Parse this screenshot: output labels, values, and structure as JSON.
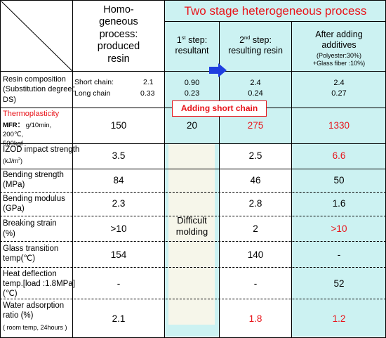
{
  "header": {
    "col1": "Homo-\ngeneous\nprocess:\nproduced\nresin",
    "group": "Two stage heterogeneous process",
    "step1_pre": "1",
    "step1_sup": "st",
    "step1_post": " step:\nresultant",
    "step2_pre": "2",
    "step2_sup": "nd",
    "step2_post": " step:\nresulting resin",
    "after": "After adding\nadditives",
    "after_note": "(Polyester:30%)\n+Glass fiber :10%)"
  },
  "callout": "Adding short chain",
  "difficult": "Difficult\nmolding",
  "rows": {
    "resin": {
      "label": "Resin composition\n(Substitution degree：\nDS)",
      "homo_short_label": "Short chain:",
      "homo_short_val": "2.1",
      "homo_long_label": "Long chain",
      "homo_long_val": "0.33",
      "s1": "0.90\n0.23",
      "s2": "2.4\n0.24",
      "after": "2.4\n0.27"
    },
    "thermo": {
      "label": "Thermoplasticity",
      "mfr_bold": "MFR：",
      "mfr_rest": "g/10min, 200℃,\n500kgf",
      "homo": "150",
      "s1": "20",
      "s2": "275",
      "after": "1330"
    },
    "izod": {
      "label": "IZOD impact strength",
      "unit_pre": "(kJ/m",
      "unit_sup": "2",
      "unit_post": ")",
      "homo": "3.5",
      "s2": "2.5",
      "after": "6.6"
    },
    "bstr": {
      "label": "Bending strength\n(MPa)",
      "homo": "84",
      "s2": "46",
      "after": "50"
    },
    "bmod": {
      "label": "Bending modulus\n(GPa)",
      "homo": "2.3",
      "s2": "2.8",
      "after": "1.6"
    },
    "brk": {
      "label": "Breaking strain\n(%)",
      "homo": ">10",
      "s2": "2",
      "after": ">10"
    },
    "glass": {
      "label": "Glass transition\ntemp(℃)",
      "homo": "154",
      "s2": "140",
      "after": "-"
    },
    "hdt": {
      "label": "Heat deflection\ntemp.[load :1.8MPa]\n(℃)",
      "homo": "-",
      "s2": "-",
      "after": "52"
    },
    "water": {
      "label": "Water adsorption\nratio (%)",
      "note": "( room temp, 24hours )",
      "homo": "2.1",
      "s2": "1.8",
      "after": "1.2"
    }
  },
  "colors": {
    "teal": "#ccf2f2",
    "beige": "#f6f6ea",
    "red": "#e8141a",
    "blue": "#1f3ee0"
  }
}
